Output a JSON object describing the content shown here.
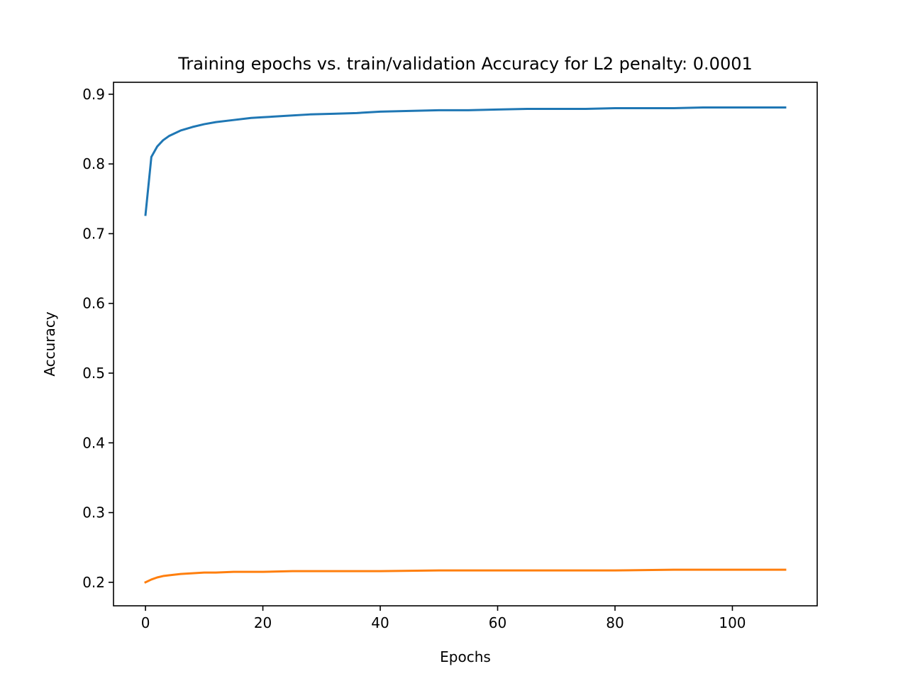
{
  "chart_data": {
    "type": "line",
    "title": "Training epochs vs. train/validation Accuracy for L2 penalty: 0.0001",
    "xlabel": "Epochs",
    "ylabel": "Accuracy",
    "xlim": [
      -5.45,
      114.45
    ],
    "ylim": [
      0.1663,
      0.9171
    ],
    "xticks": [
      0,
      20,
      40,
      60,
      80,
      100
    ],
    "xtick_labels": [
      "0",
      "20",
      "40",
      "60",
      "80",
      "100"
    ],
    "yticks": [
      0.2,
      0.3,
      0.4,
      0.5,
      0.6,
      0.7,
      0.8,
      0.9
    ],
    "ytick_labels": [
      "0.2",
      "0.3",
      "0.4",
      "0.5",
      "0.6",
      "0.7",
      "0.8",
      "0.9"
    ],
    "grid": false,
    "series": [
      {
        "color": "#1f77b4",
        "x": [
          0,
          1,
          2,
          3,
          4,
          6,
          8,
          10,
          12,
          15,
          18,
          20,
          24,
          28,
          32,
          36,
          40,
          45,
          50,
          55,
          60,
          65,
          70,
          75,
          80,
          85,
          90,
          95,
          100,
          105,
          109
        ],
        "y": [
          0.727,
          0.81,
          0.825,
          0.834,
          0.84,
          0.848,
          0.853,
          0.857,
          0.86,
          0.863,
          0.866,
          0.867,
          0.869,
          0.871,
          0.872,
          0.873,
          0.875,
          0.876,
          0.877,
          0.877,
          0.878,
          0.879,
          0.879,
          0.879,
          0.88,
          0.88,
          0.88,
          0.881,
          0.881,
          0.881,
          0.881
        ]
      },
      {
        "color": "#ff7f0e",
        "x": [
          0,
          1,
          2,
          3,
          4,
          6,
          8,
          10,
          12,
          15,
          18,
          20,
          25,
          30,
          40,
          50,
          60,
          70,
          80,
          90,
          100,
          109
        ],
        "y": [
          0.2,
          0.204,
          0.207,
          0.209,
          0.21,
          0.212,
          0.213,
          0.214,
          0.214,
          0.215,
          0.215,
          0.215,
          0.216,
          0.216,
          0.216,
          0.217,
          0.217,
          0.217,
          0.217,
          0.218,
          0.218,
          0.218
        ]
      }
    ]
  }
}
